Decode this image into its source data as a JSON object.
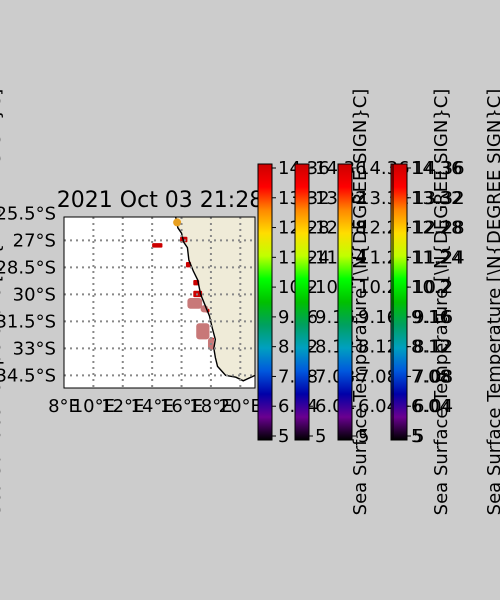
{
  "chart_data": {
    "type": "heatmap",
    "title": "2021 Oct 03 21:28",
    "map": {
      "lon_range": [
        8,
        21
      ],
      "lat_range": [
        -35.2,
        -25.7
      ],
      "lon_ticks": [
        "8°E",
        "10°E",
        "12°E",
        "14°E",
        "16°E",
        "18°E",
        "20°E"
      ],
      "lat_ticks": [
        "25.5°S",
        "27°S",
        "28.5°S",
        "30°S",
        "31.5°S",
        "33°S",
        "34.5°S"
      ],
      "gridlines": "dotted",
      "land_color": "#efebd8",
      "coastline_color": "#000000",
      "marker": {
        "lon": 15.7,
        "lat": -26.0,
        "color": "#e8a020"
      },
      "features": [
        {
          "kind": "coastline",
          "points": [
            [
              15.6,
              -25.7
            ],
            [
              15.75,
              -26.3
            ],
            [
              16.0,
              -26.6
            ],
            [
              16.15,
              -27.1
            ],
            [
              16.4,
              -27.4
            ],
            [
              16.5,
              -28.1
            ],
            [
              16.8,
              -28.7
            ],
            [
              17.1,
              -29.2
            ],
            [
              17.3,
              -30.0
            ],
            [
              17.6,
              -30.6
            ],
            [
              17.9,
              -31.2
            ],
            [
              18.1,
              -31.9
            ],
            [
              18.3,
              -32.5
            ],
            [
              18.2,
              -33.0
            ],
            [
              18.3,
              -33.5
            ],
            [
              18.45,
              -34.0
            ],
            [
              19.0,
              -34.5
            ],
            [
              19.7,
              -34.6
            ],
            [
              20.2,
              -34.8
            ],
            [
              21.0,
              -34.5
            ]
          ]
        },
        {
          "kind": "sst",
          "value": 14.36,
          "lon": 14.0,
          "lat": -27.15,
          "w": 0.7,
          "h": 0.25
        },
        {
          "kind": "sst",
          "value": 14.36,
          "lon": 15.9,
          "lat": -26.8,
          "w": 0.5,
          "h": 0.3
        },
        {
          "kind": "sst",
          "value": 14.0,
          "lon": 16.3,
          "lat": -28.2,
          "w": 0.35,
          "h": 0.3
        },
        {
          "kind": "sst",
          "value": 14.2,
          "lon": 16.8,
          "lat": -29.2,
          "w": 0.4,
          "h": 0.3
        },
        {
          "kind": "sst",
          "value": 14.36,
          "lon": 16.8,
          "lat": -29.8,
          "w": 0.6,
          "h": 0.35
        },
        {
          "kind": "sst",
          "value": 14.2,
          "lon": 17.6,
          "lat": -30.8,
          "w": 0.3,
          "h": 0.2
        },
        {
          "kind": "sst",
          "value": 14.36,
          "lon": 18.0,
          "lat": -32.4,
          "w": 0.2,
          "h": 0.25
        },
        {
          "kind": "flag",
          "lon": 16.4,
          "lat": -30.2,
          "w": 1.0,
          "h": 0.6
        },
        {
          "kind": "flag",
          "lon": 17.0,
          "lat": -31.6,
          "w": 0.9,
          "h": 0.9
        },
        {
          "kind": "flag",
          "lon": 17.8,
          "lat": -32.4,
          "w": 0.4,
          "h": 0.7
        },
        {
          "kind": "flag",
          "lon": 17.3,
          "lat": -30.6,
          "w": 0.5,
          "h": 0.4
        }
      ]
    },
    "colorbars": [
      {
        "label": "",
        "ticks": [
          "5",
          "6.04",
          "7.08",
          "8.12",
          "9.16",
          "10.2",
          "11.24",
          "12.28",
          "13.32",
          "14.36"
        ]
      },
      {
        "label": "Sea Surface Temperature [\\N{DEGREE SIGN}C]",
        "ticks": [
          "5",
          "6.04",
          "7.08",
          "8.12",
          "9.16",
          "10.2",
          "11.24",
          "12.28",
          "13.32",
          "14.36"
        ]
      },
      {
        "label": "Sea Surface Temperature [\\N{DEGREE SIGN}C]",
        "ticks": [
          "5",
          "6.04",
          "7.08",
          "8.12",
          "9.16",
          "10.2",
          "11.24",
          "12.28",
          "13.32",
          "14.36"
        ]
      },
      {
        "label": "Sea Surface Temperature [\\N{DEGREE SIGN}C]",
        "ticks": [
          "5",
          "6.04",
          "7.08",
          "8.12",
          "9.16",
          "10.2",
          "11.24",
          "12.28",
          "13.32",
          "14.36"
        ]
      },
      {
        "label": "Sea Surface Temperature [\\N{DEGREE SIGN}C]",
        "ticks": [
          "5",
          "6.04",
          "7.08",
          "8.12",
          "9.16",
          "10.2",
          "11.24",
          "12.28",
          "13.32",
          "14.36"
        ]
      }
    ],
    "colormap": [
      "#000000",
      "#6a0090",
      "#0000a8",
      "#0058dd",
      "#00a0c0",
      "#00a060",
      "#00c000",
      "#00ff00",
      "#c0ff00",
      "#ffdd00",
      "#ff8800",
      "#ff0000",
      "#cc0000"
    ],
    "value_range": [
      5,
      14.36
    ],
    "flag_color": "#c87878"
  }
}
